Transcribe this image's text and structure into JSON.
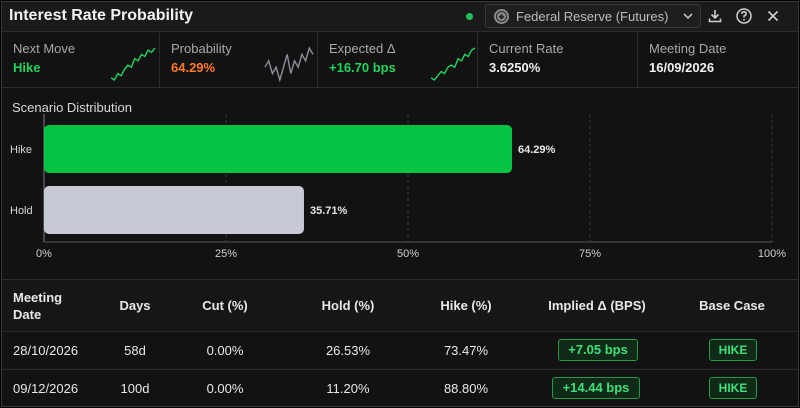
{
  "header": {
    "title": "Interest Rate Probability",
    "source_label": "Federal Reserve (Futures)",
    "live_color": "#21c15a"
  },
  "stats": [
    {
      "label": "Next Move",
      "value": "Hike",
      "color": "#22d35c",
      "sparkline": [
        3,
        2,
        5,
        4,
        7,
        9,
        8,
        12,
        11,
        14,
        13,
        16,
        15,
        17
      ]
    },
    {
      "label": "Probability",
      "value": "64.29%",
      "color": "#ff7a2a",
      "sparkline": [
        10,
        11,
        9,
        10,
        8,
        10,
        12,
        9,
        11,
        10,
        12,
        11,
        13,
        12
      ]
    },
    {
      "label": "Expected Δ",
      "value": "+16.70 bps",
      "color": "#22d35c",
      "sparkline": [
        3,
        2,
        4,
        6,
        5,
        8,
        9,
        8,
        12,
        11,
        14,
        13,
        16,
        17
      ]
    },
    {
      "label": "Current Rate",
      "value": "3.6250%",
      "color": "#f0f0f0"
    },
    {
      "label": "Meeting Date",
      "value": "16/09/2026",
      "color": "#f0f0f0"
    }
  ],
  "chart_title": "Scenario Distribution",
  "chart_data": {
    "type": "bar",
    "orientation": "horizontal",
    "categories": [
      "Hike",
      "Hold"
    ],
    "values": [
      64.29,
      35.71
    ],
    "value_labels": [
      "64.29%",
      "35.71%"
    ],
    "colors": [
      "#06c443",
      "#c6cad4"
    ],
    "xlim": [
      0,
      100
    ],
    "x_ticks": [
      0,
      25,
      50,
      75,
      100
    ],
    "x_tick_labels": [
      "0%",
      "25%",
      "50%",
      "75%",
      "100%"
    ],
    "grid": true
  },
  "table": {
    "headers": {
      "meeting_date": "Meeting Date",
      "days": "Days",
      "cut": "Cut (%)",
      "hold": "Hold (%)",
      "hike": "Hike (%)",
      "implied": "Implied Δ (BPS)",
      "base_case": "Base Case"
    },
    "rows": [
      {
        "date": "28/10/2026",
        "days": "58d",
        "cut": "0.00%",
        "hold": "26.53%",
        "hike": "73.47%",
        "implied": "+7.05 bps",
        "base_case": "HIKE"
      },
      {
        "date": "09/12/2026",
        "days": "100d",
        "cut": "0.00%",
        "hold": "11.20%",
        "hike": "88.80%",
        "implied": "+14.44 bps",
        "base_case": "HIKE"
      }
    ]
  },
  "icons": {
    "source": "federal-reserve-seal-icon",
    "dropdown": "chevron-down-icon",
    "download": "download-icon",
    "help": "help-icon",
    "close": "close-icon"
  }
}
